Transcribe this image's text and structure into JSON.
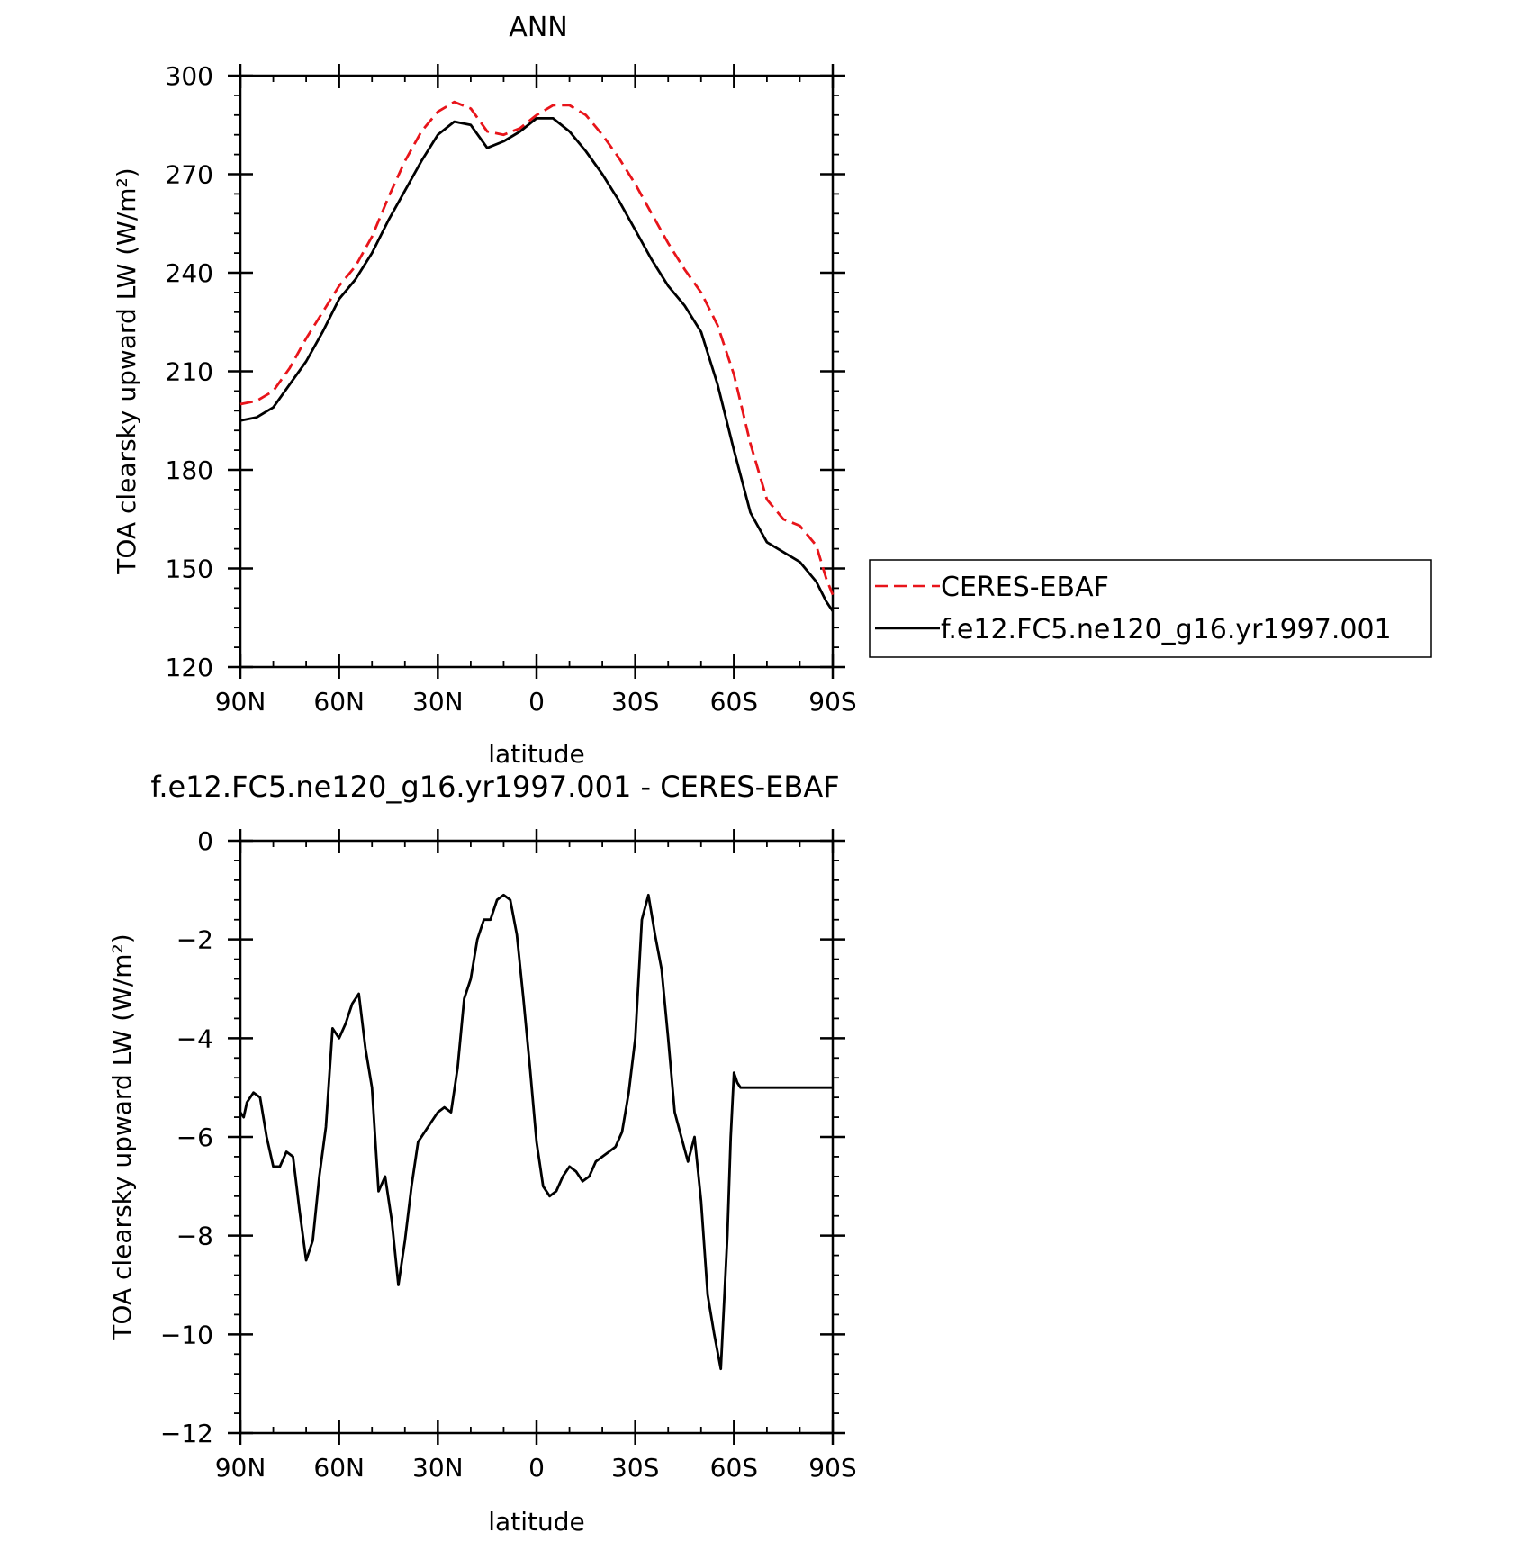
{
  "chart_data": [
    {
      "type": "line",
      "title": "ANN",
      "xlabel": "latitude",
      "ylabel": "TOA clearsky upward LW (W/m²)",
      "ylim": [
        120,
        300
      ],
      "yticks": [
        "120",
        "150",
        "180",
        "210",
        "240",
        "270",
        "300"
      ],
      "xlim": [
        90,
        -90
      ],
      "xticks": [
        "90N",
        "60N",
        "30N",
        "0",
        "30S",
        "60S",
        "90S"
      ],
      "grid": false,
      "legend_position": "right",
      "series": [
        {
          "name": "CERES-EBAF",
          "color": "#e8141a",
          "dash": "dashed",
          "x": [
            90,
            85,
            80,
            75,
            70,
            65,
            60,
            55,
            50,
            45,
            40,
            35,
            30,
            25,
            20,
            15,
            10,
            5,
            0,
            -5,
            -10,
            -15,
            -20,
            -25,
            -30,
            -35,
            -40,
            -45,
            -50,
            -55,
            -60,
            -65,
            -70,
            -75,
            -80,
            -85,
            -88,
            -90
          ],
          "y": [
            200,
            201,
            204,
            211,
            220,
            228,
            236,
            242,
            251,
            263,
            274,
            283,
            289,
            292,
            290,
            283,
            282,
            284,
            288,
            291,
            291,
            288,
            282,
            275,
            267,
            258,
            249,
            241,
            234,
            224,
            209,
            188,
            171,
            165,
            163,
            157,
            147,
            142
          ]
        },
        {
          "name": "f.e12.FC5.ne120_g16.yr1997.001",
          "color": "#000000",
          "dash": "solid",
          "x": [
            90,
            85,
            80,
            75,
            70,
            65,
            60,
            55,
            50,
            45,
            40,
            35,
            30,
            25,
            20,
            15,
            10,
            5,
            0,
            -5,
            -10,
            -15,
            -20,
            -25,
            -30,
            -35,
            -40,
            -45,
            -50,
            -55,
            -60,
            -65,
            -70,
            -75,
            -80,
            -85,
            -88,
            -90
          ],
          "y": [
            195,
            196,
            199,
            206,
            213,
            222,
            232,
            238,
            246,
            256,
            265,
            274,
            282,
            286,
            285,
            278,
            280,
            283,
            287,
            287,
            283,
            277,
            270,
            262,
            253,
            244,
            236,
            230,
            222,
            206,
            186,
            167,
            158,
            155,
            152,
            146,
            140,
            137
          ]
        }
      ]
    },
    {
      "type": "line",
      "title": "f.e12.FC5.ne120_g16.yr1997.001 - CERES-EBAF",
      "xlabel": "latitude",
      "ylabel": "TOA clearsky upward LW (W/m²)",
      "ylim": [
        -12,
        0
      ],
      "yticks": [
        "−12",
        "−10",
        "−8",
        "−6",
        "−4",
        "−2",
        "0"
      ],
      "xlim": [
        90,
        -90
      ],
      "xticks": [
        "90N",
        "60N",
        "30N",
        "0",
        "30S",
        "60S",
        "90S"
      ],
      "grid": false,
      "series": [
        {
          "color": "#000000",
          "dash": "solid",
          "x": [
            90,
            89,
            88,
            86,
            84,
            82,
            80,
            78,
            76,
            74,
            72,
            70,
            68,
            66,
            64,
            62,
            60,
            58,
            57,
            56,
            54,
            52,
            50,
            48,
            46,
            44,
            42,
            40,
            38,
            36,
            34,
            32,
            30,
            28,
            26,
            24,
            22,
            20,
            18,
            16,
            14,
            12,
            10,
            8,
            6,
            4,
            2,
            0,
            -2,
            -4,
            -6,
            -8,
            -10,
            -12,
            -14,
            -16,
            -18,
            -20,
            -22,
            -24,
            -26,
            -28,
            -30,
            -32,
            -34,
            -36,
            -38,
            -40,
            -42,
            -44,
            -46,
            -48,
            -50,
            -52,
            -54,
            -56,
            -58,
            -59,
            -60,
            -61,
            -62,
            -63,
            -64,
            -66,
            -68,
            -70,
            -72,
            -74,
            -76,
            -78,
            -80,
            -82,
            -84,
            -85,
            -86,
            -87,
            -88,
            -89,
            -90
          ],
          "y": [
            -5.5,
            -5.6,
            -5.3,
            -5.1,
            -5.2,
            -6.0,
            -6.6,
            -6.6,
            -6.3,
            -6.4,
            -7.5,
            -8.5,
            -8.1,
            -6.8,
            -5.8,
            -3.8,
            -4.0,
            -3.7,
            -3.5,
            -3.3,
            -3.1,
            -4.2,
            -5.0,
            -7.1,
            -6.8,
            -7.7,
            -9.0,
            -8.1,
            -7.0,
            -6.1,
            -5.9,
            -5.7,
            -5.5,
            -5.4,
            -5.5,
            -4.6,
            -3.2,
            -2.8,
            -2.0,
            -1.6,
            -1.6,
            -1.2,
            -1.1,
            -1.2,
            -1.9,
            -3.2,
            -4.6,
            -6.1,
            -7.0,
            -7.2,
            -7.1,
            -6.8,
            -6.6,
            -6.7,
            -6.9,
            -6.8,
            -6.5,
            -6.4,
            -6.3,
            -6.2,
            -5.9,
            -5.1,
            -4.0,
            -1.6,
            -1.1,
            -1.9,
            -2.6,
            -4.0,
            -5.5,
            -6.0,
            -6.5,
            -6.0,
            -7.3,
            -9.2,
            -10.0,
            -10.7,
            -8.0,
            -6.0,
            -4.7,
            -4.9,
            -5.0,
            -5.0,
            -5.0,
            -5.0,
            -5.0,
            -5.0,
            -5.0,
            -5.0,
            -5.0,
            -5.0,
            -5.0,
            -5.0,
            -5.0,
            -5.0,
            -5.0,
            -5.0,
            -5.0,
            -5.0,
            -5.0
          ]
        }
      ]
    }
  ]
}
